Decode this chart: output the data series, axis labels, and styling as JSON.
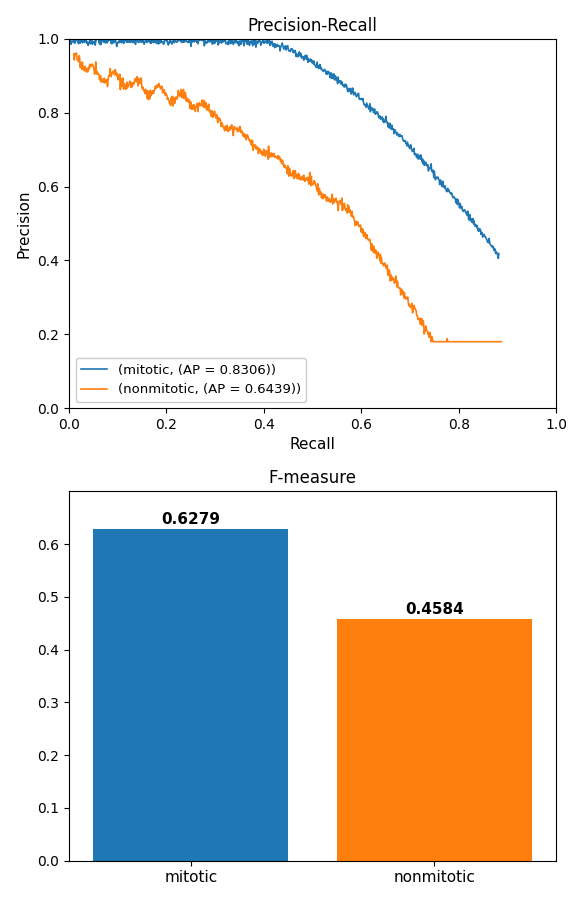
{
  "pr_title": "Precision-Recall",
  "pr_xlabel": "Recall",
  "pr_ylabel": "Precision",
  "pr_xlim": [
    0.0,
    1.0
  ],
  "pr_ylim": [
    0.0,
    1.0
  ],
  "mitotic_label": "(mitotic, (AP = 0.8306))",
  "nonmitotic_label": "(nonmitotic, (AP = 0.6439))",
  "mitotic_color": "#1f77b4",
  "nonmitotic_color": "#ff7f0e",
  "bar_title": "F-measure",
  "bar_categories": [
    "mitotic",
    "nonmitotic"
  ],
  "bar_values": [
    0.6279,
    0.4584
  ],
  "bar_colors": [
    "#1f77b4",
    "#ff7f0e"
  ],
  "bar_ylim": [
    0.0,
    0.7
  ],
  "bar_yticks": [
    0.0,
    0.1,
    0.2,
    0.3,
    0.4,
    0.5,
    0.6
  ]
}
